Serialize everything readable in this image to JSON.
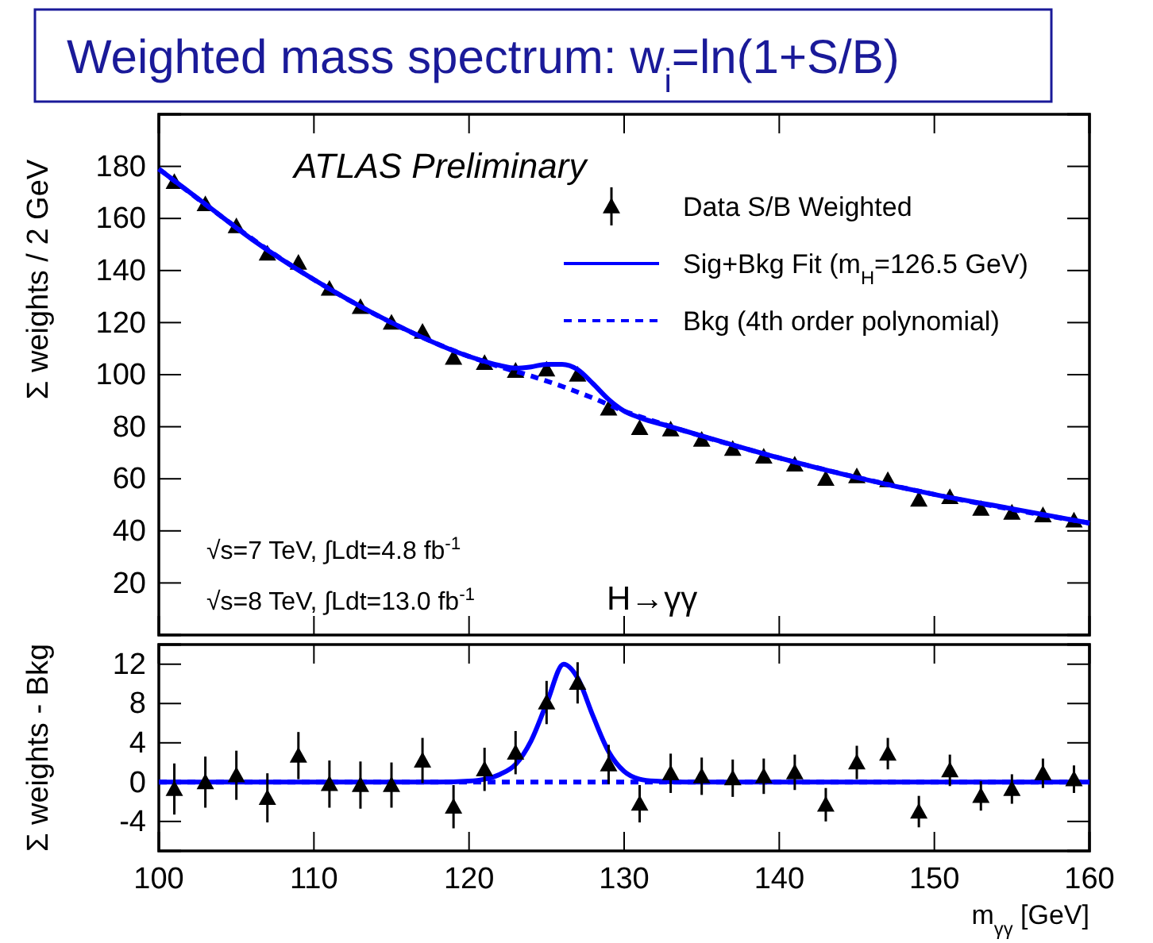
{
  "chart_data": [
    {
      "type": "scatter",
      "title": "Weighted mass spectrum: w$_{i}$=ln(1+S/B)",
      "ylabel": "Σ weights / 2 GeV",
      "xlim": [
        100,
        160
      ],
      "xticks": [
        100,
        110,
        120,
        130,
        140,
        150,
        160
      ],
      "ylim": [
        0,
        200
      ],
      "yticks": [
        20,
        40,
        60,
        80,
        100,
        120,
        140,
        160,
        180
      ],
      "tick_labels": "y",
      "grid": false,
      "legend": "top right",
      "annotations": [
        "ATLAS Preliminary",
        "√s=7 TeV, ∫Ldt=4.8 fb$^{-1}$",
        "√s=8 TeV, ∫Ldt=13.0 fb$^{-1}$",
        "H→γγ"
      ],
      "series": [
        {
          "name": "Data S/B Weighted",
          "marker": "triangle",
          "color": "#000000",
          "x": [
            101,
            103,
            105,
            107,
            109,
            111,
            113,
            115,
            117,
            119,
            121,
            123,
            125,
            127,
            129,
            131,
            133,
            135,
            137,
            139,
            141,
            143,
            145,
            147,
            149,
            151,
            153,
            155,
            157,
            159
          ],
          "values": [
            174,
            165.5,
            157,
            146.5,
            143,
            133,
            126,
            120,
            116.5,
            106.5,
            104.5,
            101.5,
            102,
            100,
            87,
            79.5,
            79,
            75,
            71.5,
            68.5,
            65.5,
            60,
            61,
            59.5,
            52,
            53,
            48.5,
            47,
            46,
            44
          ]
        },
        {
          "name": "Sig+Bkg Fit (m$_{H}$=126.5 GeV)",
          "type": "line",
          "color": "#0000ff",
          "line_style": "solid",
          "x": [
            100,
            103,
            106,
            110,
            115,
            120,
            122,
            123,
            124,
            125,
            126,
            127,
            128,
            129,
            130,
            131,
            133,
            135,
            140,
            145,
            150,
            155,
            160
          ],
          "values": [
            179,
            165.5,
            152,
            136.5,
            120,
            107,
            103.5,
            102.5,
            103,
            104,
            104,
            102,
            96.5,
            90.5,
            86,
            83.5,
            80,
            76.5,
            68,
            60.5,
            54,
            48.5,
            43
          ]
        },
        {
          "name": "Bkg (4th order polynomial)",
          "type": "line",
          "color": "#0000ff",
          "line_style": "dashed",
          "x": [
            100,
            110,
            120,
            122,
            124,
            126,
            128,
            130,
            132,
            140,
            150,
            160
          ],
          "values": [
            179,
            136.5,
            107,
            103,
            99.5,
            95.5,
            91,
            86,
            82,
            68,
            54,
            43
          ]
        }
      ]
    },
    {
      "type": "scatter",
      "ylabel": "Σ weights - Bkg",
      "xlabel": "m$_{γγ}$ [GeV]",
      "xlim": [
        100,
        160
      ],
      "xticks": [
        100,
        110,
        120,
        130,
        140,
        150,
        160
      ],
      "ylim": [
        -7,
        14
      ],
      "yticks": [
        -4,
        0,
        4,
        8,
        12
      ],
      "grid": false,
      "legend": false,
      "series": [
        {
          "type": "line",
          "color": "#0000ff",
          "line_style": "dashed",
          "x": [
            100,
            160
          ],
          "values": [
            0,
            0
          ]
        },
        {
          "type": "line",
          "color": "#0000ff",
          "line_style": "solid",
          "x": [
            100,
            118,
            120,
            121,
            122,
            123,
            124,
            125,
            126.1,
            127,
            128,
            129,
            130,
            131,
            132,
            134,
            160
          ],
          "values": [
            0,
            0,
            0.1,
            0.3,
            0.8,
            1.8,
            4.2,
            8,
            12,
            10.6,
            6.7,
            3.1,
            1.1,
            0.3,
            0.1,
            0,
            0
          ]
        },
        {
          "marker": "triangle",
          "color": "#000000",
          "x": [
            101,
            103,
            105,
            107,
            109,
            111,
            113,
            115,
            117,
            119,
            121,
            123,
            125,
            127,
            129,
            131,
            133,
            135,
            137,
            139,
            141,
            143,
            145,
            147,
            149,
            151,
            153,
            155,
            157,
            159
          ],
          "values": [
            -0.7,
            0,
            0.7,
            -1.6,
            2.7,
            -0.2,
            -0.3,
            -0.3,
            2.2,
            -2.5,
            1.3,
            3,
            8.1,
            10.1,
            1.8,
            -2.2,
            0.9,
            0.6,
            0.4,
            0.6,
            1,
            -2.3,
            2,
            2.9,
            -3,
            1.2,
            -1.4,
            -0.7,
            0.9,
            0.3
          ],
          "errors": [
            2.6,
            2.6,
            2.5,
            2.5,
            2.4,
            2.4,
            2.4,
            2.3,
            2.3,
            2.2,
            2.2,
            2.2,
            2.2,
            2.1,
            2,
            1.9,
            2,
            1.9,
            1.9,
            1.8,
            1.8,
            1.7,
            1.7,
            1.6,
            1.6,
            1.6,
            1.5,
            1.5,
            1.5,
            1.4
          ]
        }
      ]
    }
  ]
}
